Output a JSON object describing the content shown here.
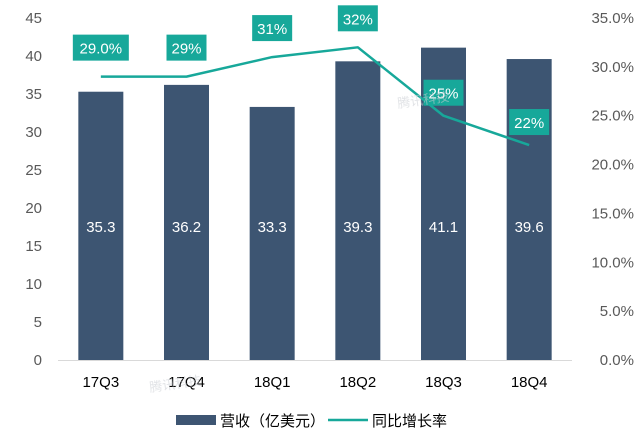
{
  "chart_data": {
    "type": "bar",
    "categories": [
      "17Q3",
      "17Q4",
      "18Q1",
      "18Q2",
      "18Q3",
      "18Q4"
    ],
    "series": [
      {
        "name": "营收（亿美元）",
        "type": "bar",
        "axis": "left",
        "values": [
          35.3,
          36.2,
          33.3,
          39.3,
          41.1,
          39.6
        ],
        "labels": [
          "35.3",
          "36.2",
          "33.3",
          "39.3",
          "41.1",
          "39.6"
        ],
        "color": "#3d5572"
      },
      {
        "name": "同比增长率",
        "type": "line",
        "axis": "right",
        "values": [
          29.0,
          29.0,
          31.0,
          32.0,
          25.0,
          22.0
        ],
        "labels": [
          "29.0%",
          "29%",
          "31%",
          "32%",
          "25%",
          "22%"
        ],
        "color": "#17a89a"
      }
    ],
    "ylim_left": [
      0,
      45
    ],
    "yticks_left": [
      "0",
      "5",
      "10",
      "15",
      "20",
      "25",
      "30",
      "35",
      "40",
      "45"
    ],
    "ylim_right": [
      0,
      35
    ],
    "yticks_right": [
      "0.0%",
      "5.0%",
      "10.0%",
      "15.0%",
      "20.0%",
      "25.0%",
      "30.0%",
      "35.0%"
    ],
    "grid": false,
    "legend_position": "bottom"
  },
  "watermark": [
    "腾讯科技",
    "腾讯科技"
  ]
}
